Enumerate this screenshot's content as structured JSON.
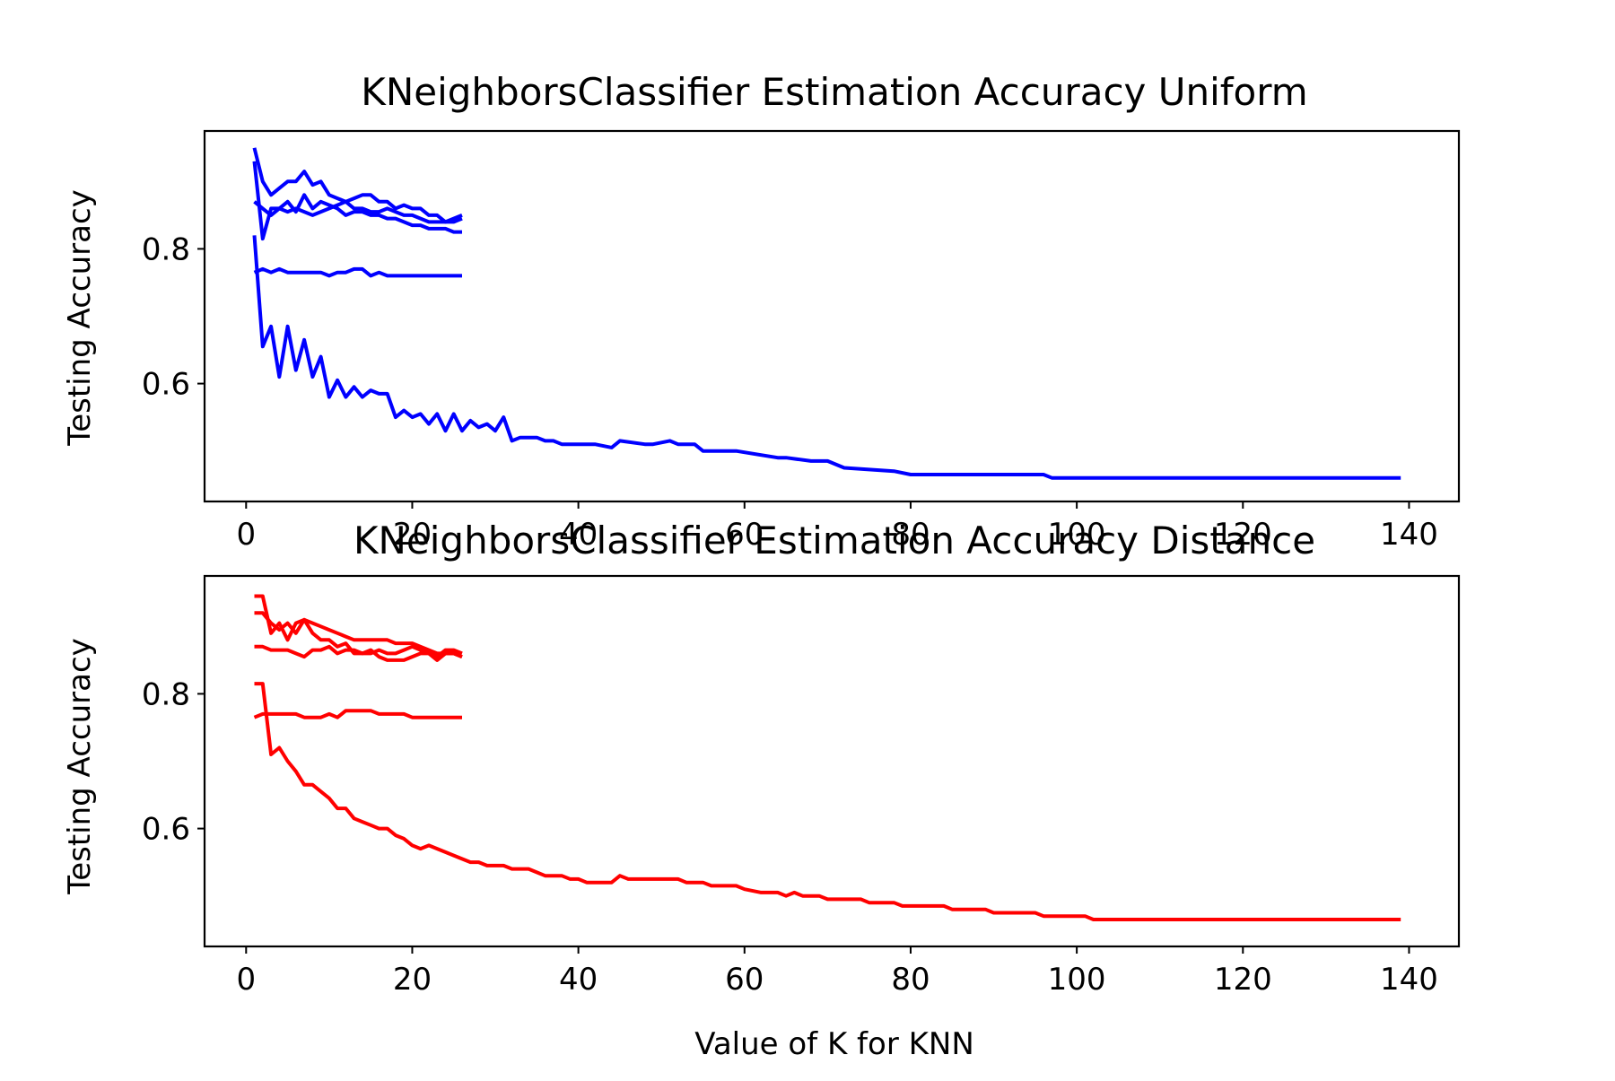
{
  "chart_data": [
    {
      "type": "line",
      "title": "KNeighborsClassifier Estimation Accuracy Uniform",
      "xlabel": "",
      "ylabel": "Testing Accuracy",
      "xlim": [
        -5,
        146
      ],
      "ylim": [
        0.425,
        0.975
      ],
      "xticks": [
        0,
        20,
        40,
        60,
        80,
        100,
        120,
        140
      ],
      "yticks": [
        0.6,
        0.8
      ],
      "xtick_labels": [
        "0",
        "20",
        "40",
        "60",
        "80",
        "100",
        "120",
        "140"
      ],
      "ytick_labels": [
        "0.6",
        "0.8"
      ],
      "grid": false,
      "color": "#0000ff",
      "series": [
        {
          "x": [
            1,
            2,
            3,
            4,
            5,
            6,
            7,
            8,
            9,
            10,
            11,
            12,
            13,
            14,
            15,
            16,
            17,
            18,
            19,
            20,
            21,
            22,
            23,
            24,
            25,
            26
          ],
          "values": [
            0.95,
            0.9,
            0.88,
            0.89,
            0.9,
            0.9,
            0.915,
            0.895,
            0.9,
            0.88,
            0.875,
            0.87,
            0.86,
            0.86,
            0.855,
            0.855,
            0.86,
            0.855,
            0.85,
            0.85,
            0.845,
            0.84,
            0.84,
            0.84,
            0.84,
            0.845
          ]
        },
        {
          "x": [
            1,
            2,
            3,
            4,
            5,
            6,
            7,
            8,
            9,
            10,
            11,
            12,
            13,
            14,
            15,
            16,
            17,
            18,
            19,
            20,
            21,
            22,
            23,
            24,
            25,
            26
          ],
          "values": [
            0.93,
            0.815,
            0.86,
            0.86,
            0.855,
            0.86,
            0.855,
            0.85,
            0.855,
            0.86,
            0.865,
            0.87,
            0.875,
            0.88,
            0.88,
            0.87,
            0.87,
            0.86,
            0.865,
            0.86,
            0.86,
            0.85,
            0.85,
            0.84,
            0.845,
            0.85
          ]
        },
        {
          "x": [
            1,
            2,
            3,
            4,
            5,
            6,
            7,
            8,
            9,
            10,
            11,
            12,
            13,
            14,
            15,
            16,
            17,
            18,
            19,
            20,
            21,
            22,
            23,
            24,
            25,
            26
          ],
          "values": [
            0.87,
            0.86,
            0.85,
            0.86,
            0.87,
            0.855,
            0.88,
            0.86,
            0.87,
            0.865,
            0.86,
            0.85,
            0.855,
            0.855,
            0.85,
            0.85,
            0.845,
            0.845,
            0.84,
            0.835,
            0.835,
            0.83,
            0.83,
            0.83,
            0.825,
            0.825
          ]
        },
        {
          "x": [
            1,
            2,
            3,
            4,
            5,
            6,
            7,
            8,
            9,
            10,
            11,
            12,
            13,
            14,
            15,
            16,
            17,
            18,
            19,
            20,
            21,
            22,
            23,
            24,
            25,
            26
          ],
          "values": [
            0.765,
            0.77,
            0.765,
            0.77,
            0.765,
            0.765,
            0.765,
            0.765,
            0.765,
            0.76,
            0.765,
            0.765,
            0.77,
            0.77,
            0.76,
            0.765,
            0.76,
            0.76,
            0.76,
            0.76,
            0.76,
            0.76,
            0.76,
            0.76,
            0.76,
            0.76
          ]
        },
        {
          "x": [
            1,
            2,
            3,
            4,
            5,
            6,
            7,
            8,
            9,
            10,
            11,
            12,
            13,
            14,
            15,
            16,
            17,
            18,
            19,
            20,
            21,
            22,
            23,
            24,
            25,
            26,
            27,
            28,
            29,
            30,
            31,
            32,
            33,
            34,
            35,
            36,
            37,
            38,
            40,
            42,
            44,
            45,
            48,
            49,
            51,
            52,
            54,
            55,
            58,
            59,
            64,
            65,
            68,
            69,
            70,
            72,
            78,
            80,
            96,
            97,
            139
          ],
          "values": [
            0.82,
            0.655,
            0.685,
            0.61,
            0.685,
            0.62,
            0.665,
            0.61,
            0.64,
            0.58,
            0.605,
            0.58,
            0.595,
            0.58,
            0.59,
            0.585,
            0.585,
            0.55,
            0.56,
            0.55,
            0.555,
            0.54,
            0.555,
            0.53,
            0.555,
            0.53,
            0.545,
            0.535,
            0.54,
            0.53,
            0.55,
            0.515,
            0.52,
            0.52,
            0.52,
            0.515,
            0.515,
            0.51,
            0.51,
            0.51,
            0.505,
            0.515,
            0.51,
            0.51,
            0.515,
            0.51,
            0.51,
            0.5,
            0.5,
            0.5,
            0.49,
            0.49,
            0.485,
            0.485,
            0.485,
            0.475,
            0.47,
            0.465,
            0.465,
            0.46,
            0.46
          ]
        }
      ]
    },
    {
      "type": "line",
      "title": "KNeighborsClassifier Estimation Accuracy Distance",
      "xlabel": "Value of K for KNN",
      "ylabel": "Testing Accuracy",
      "xlim": [
        -5,
        146
      ],
      "ylim": [
        0.425,
        0.975
      ],
      "xticks": [
        0,
        20,
        40,
        60,
        80,
        100,
        120,
        140
      ],
      "yticks": [
        0.6,
        0.8
      ],
      "xtick_labels": [
        "0",
        "20",
        "40",
        "60",
        "80",
        "100",
        "120",
        "140"
      ],
      "ytick_labels": [
        "0.6",
        "0.8"
      ],
      "grid": false,
      "color": "#ff0000",
      "series": [
        {
          "x": [
            1,
            2,
            3,
            4,
            5,
            6,
            7,
            8,
            9,
            10,
            11,
            12,
            13,
            14,
            15,
            16,
            17,
            18,
            19,
            20,
            21,
            22,
            23,
            24,
            25,
            26
          ],
          "values": [
            0.945,
            0.945,
            0.89,
            0.905,
            0.88,
            0.905,
            0.91,
            0.905,
            0.9,
            0.895,
            0.89,
            0.885,
            0.88,
            0.88,
            0.88,
            0.88,
            0.88,
            0.875,
            0.875,
            0.875,
            0.87,
            0.865,
            0.86,
            0.86,
            0.86,
            0.855
          ]
        },
        {
          "x": [
            1,
            2,
            3,
            4,
            5,
            6,
            7,
            8,
            9,
            10,
            11,
            12,
            13,
            14,
            15,
            16,
            17,
            18,
            19,
            20,
            21,
            22,
            23,
            24,
            25,
            26
          ],
          "values": [
            0.92,
            0.92,
            0.905,
            0.895,
            0.905,
            0.89,
            0.91,
            0.89,
            0.88,
            0.88,
            0.87,
            0.875,
            0.86,
            0.86,
            0.86,
            0.865,
            0.86,
            0.86,
            0.865,
            0.87,
            0.865,
            0.86,
            0.85,
            0.86,
            0.86,
            0.855
          ]
        },
        {
          "x": [
            1,
            2,
            3,
            4,
            5,
            6,
            7,
            8,
            9,
            10,
            11,
            12,
            13,
            14,
            15,
            16,
            17,
            18,
            19,
            20,
            21,
            22,
            23,
            24,
            25,
            26
          ],
          "values": [
            0.87,
            0.87,
            0.865,
            0.865,
            0.865,
            0.86,
            0.855,
            0.865,
            0.865,
            0.87,
            0.86,
            0.865,
            0.865,
            0.86,
            0.865,
            0.855,
            0.85,
            0.85,
            0.85,
            0.855,
            0.86,
            0.86,
            0.855,
            0.865,
            0.865,
            0.86
          ]
        },
        {
          "x": [
            1,
            2,
            3,
            4,
            5,
            6,
            7,
            8,
            9,
            10,
            11,
            12,
            13,
            14,
            15,
            16,
            17,
            18,
            19,
            20,
            21,
            22,
            23,
            24,
            25,
            26
          ],
          "values": [
            0.765,
            0.77,
            0.77,
            0.77,
            0.77,
            0.77,
            0.765,
            0.765,
            0.765,
            0.77,
            0.765,
            0.775,
            0.775,
            0.775,
            0.775,
            0.77,
            0.77,
            0.77,
            0.77,
            0.765,
            0.765,
            0.765,
            0.765,
            0.765,
            0.765,
            0.765
          ]
        },
        {
          "x": [
            1,
            2,
            3,
            4,
            5,
            6,
            7,
            8,
            9,
            10,
            11,
            12,
            13,
            14,
            15,
            16,
            17,
            18,
            19,
            20,
            21,
            22,
            23,
            24,
            25,
            26,
            27,
            28,
            29,
            30,
            31,
            32,
            33,
            34,
            35,
            36,
            37,
            38,
            39,
            40,
            41,
            42,
            43,
            44,
            45,
            46,
            47,
            50,
            52,
            53,
            55,
            56,
            59,
            60,
            62,
            63,
            64,
            65,
            66,
            67,
            68,
            69,
            70,
            72,
            73,
            74,
            75,
            76,
            77,
            78,
            79,
            80,
            84,
            85,
            89,
            90,
            95,
            96,
            101,
            102,
            139
          ],
          "values": [
            0.815,
            0.815,
            0.71,
            0.72,
            0.7,
            0.685,
            0.665,
            0.665,
            0.655,
            0.645,
            0.63,
            0.63,
            0.615,
            0.61,
            0.605,
            0.6,
            0.6,
            0.59,
            0.585,
            0.575,
            0.57,
            0.575,
            0.57,
            0.565,
            0.56,
            0.555,
            0.55,
            0.55,
            0.545,
            0.545,
            0.545,
            0.54,
            0.54,
            0.54,
            0.535,
            0.53,
            0.53,
            0.53,
            0.525,
            0.525,
            0.52,
            0.52,
            0.52,
            0.52,
            0.53,
            0.525,
            0.525,
            0.525,
            0.525,
            0.52,
            0.52,
            0.515,
            0.515,
            0.51,
            0.505,
            0.505,
            0.505,
            0.5,
            0.505,
            0.5,
            0.5,
            0.5,
            0.495,
            0.495,
            0.495,
            0.495,
            0.49,
            0.49,
            0.49,
            0.49,
            0.485,
            0.485,
            0.485,
            0.48,
            0.48,
            0.475,
            0.475,
            0.47,
            0.47,
            0.465,
            0.465
          ]
        }
      ]
    }
  ]
}
